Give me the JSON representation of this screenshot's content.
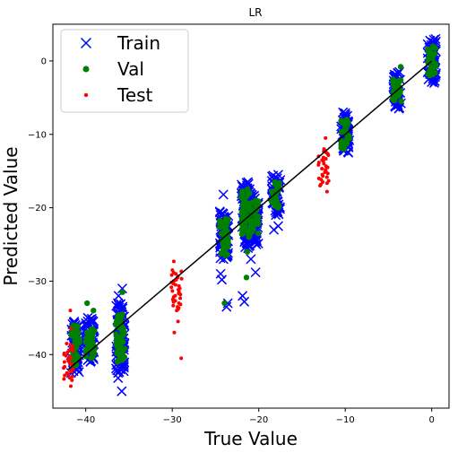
{
  "chart_data": {
    "type": "scatter",
    "title": "LR",
    "xlabel": "True Value",
    "ylabel": "Predicted Value",
    "xlim": [
      -43.8,
      2.0
    ],
    "ylim": [
      -47.3,
      5.0
    ],
    "xticks": [
      -40,
      -30,
      -20,
      -10,
      0
    ],
    "yticks": [
      -40,
      -30,
      -20,
      -10,
      0
    ],
    "xtick_labels": [
      "−40",
      "−30",
      "−20",
      "−10",
      "0"
    ],
    "ytick_labels": [
      "−40",
      "−30",
      "−20",
      "−10",
      "0"
    ],
    "grid": false,
    "legend_position": "top-left",
    "series": [
      {
        "name": "Train",
        "marker": "x",
        "color": "#0000ff",
        "columns": [
          {
            "x": -41.2,
            "ymin": -42.5,
            "ymax": -35.5,
            "extra": [
              -36.2,
              -37.0
            ]
          },
          {
            "x": -39.5,
            "ymin": -41.0,
            "ymax": -35.0,
            "extra": [
              -35.5
            ]
          },
          {
            "x": -36.0,
            "ymin": -42.5,
            "ymax": -33.0,
            "extra": [
              -31.0,
              -32.0,
              -43.2,
              -45.0
            ]
          },
          {
            "x": -24.0,
            "ymin": -27.0,
            "ymax": -20.5,
            "extra": [
              -18.2,
              -29.0,
              -29.8,
              -33.0,
              -33.5
            ]
          },
          {
            "x": -21.5,
            "ymin": -25.5,
            "ymax": -16.5,
            "extra": [
              -32.0,
              -32.8
            ]
          },
          {
            "x": -20.5,
            "ymin": -25.0,
            "ymax": -18.0,
            "extra": [
              -27.0,
              -28.8
            ]
          },
          {
            "x": -18.0,
            "ymin": -21.0,
            "ymax": -15.5,
            "extra": [
              -22.5,
              -23.0
            ]
          },
          {
            "x": -10.0,
            "ymin": -12.5,
            "ymax": -7.0,
            "extra": []
          },
          {
            "x": -4.0,
            "ymin": -6.5,
            "ymax": -1.5,
            "extra": []
          },
          {
            "x": 0.0,
            "ymin": -3.0,
            "ymax": 3.0,
            "extra": []
          }
        ]
      },
      {
        "name": "Val",
        "marker": "o",
        "color": "#008000",
        "columns": [
          {
            "x": -41.2,
            "ymin": -41.5,
            "ymax": -36.0,
            "extra": []
          },
          {
            "x": -39.5,
            "ymin": -40.5,
            "ymax": -36.5,
            "extra": [
              -33.0,
              -34.0
            ]
          },
          {
            "x": -36.0,
            "ymin": -41.0,
            "ymax": -34.5,
            "extra": [
              -31.5
            ]
          },
          {
            "x": -24.0,
            "ymin": -26.5,
            "ymax": -21.5,
            "extra": [
              -33.0
            ]
          },
          {
            "x": -21.5,
            "ymin": -24.0,
            "ymax": -17.5,
            "extra": [
              -26.0,
              -29.5
            ]
          },
          {
            "x": -20.5,
            "ymin": -23.5,
            "ymax": -19.0,
            "extra": []
          },
          {
            "x": -18.0,
            "ymin": -20.0,
            "ymax": -16.5,
            "extra": []
          },
          {
            "x": -10.0,
            "ymin": -12.0,
            "ymax": -8.0,
            "extra": []
          },
          {
            "x": -4.0,
            "ymin": -5.5,
            "ymax": -2.5,
            "extra": [
              -0.8
            ]
          },
          {
            "x": 0.0,
            "ymin": -2.0,
            "ymax": 2.0,
            "extra": []
          }
        ]
      },
      {
        "name": "Test",
        "marker": ".",
        "color": "#ff0000",
        "columns": [
          {
            "x": -42.0,
            "ymin": -43.5,
            "ymax": -38.5,
            "extra": [
              -34.0,
              -36.5,
              -44.3
            ]
          },
          {
            "x": -29.5,
            "ymin": -34.0,
            "ymax": -28.5,
            "extra": [
              -27.3,
              -35.5,
              -37.0,
              -40.5
            ]
          },
          {
            "x": -12.5,
            "ymin": -17.0,
            "ymax": -12.0,
            "extra": [
              -10.5,
              -17.8
            ]
          }
        ]
      }
    ],
    "reference_line": {
      "type": "y=x",
      "from": -42,
      "to": 0,
      "color": "#000000"
    }
  }
}
